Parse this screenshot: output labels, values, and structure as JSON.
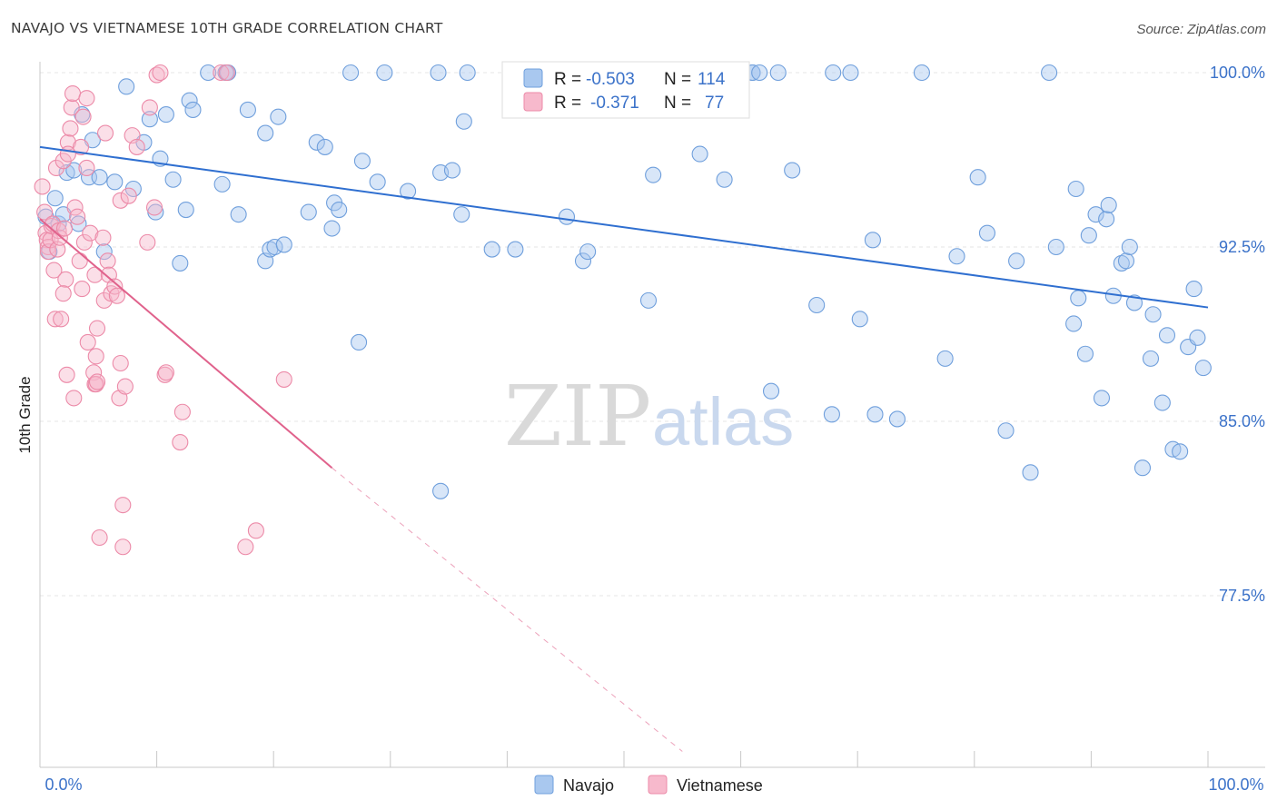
{
  "title": "NAVAJO VS VIETNAMESE 10TH GRADE CORRELATION CHART",
  "source": "Source: ZipAtlas.com",
  "watermark": {
    "zip": "ZIP",
    "atlas": "atlas"
  },
  "colors": {
    "navajo_fill": "#a9c8ef",
    "navajo_stroke": "#6f9fdc",
    "navajo_line": "#2f6fd0",
    "viet_fill": "#f7b9cc",
    "viet_stroke": "#ec8aa8",
    "viet_line": "#e0628c",
    "axis_label": "#3b72c9"
  },
  "legend_top": {
    "rows": [
      {
        "r_label": "R =",
        "r_value": "-0.503",
        "n_label": "N =",
        "n_value": "114"
      },
      {
        "r_label": "R =",
        "r_value": "-0.371",
        "n_label": "N =",
        "n_value": "77"
      }
    ]
  },
  "legend_bottom": {
    "items": [
      "Navajo",
      "Vietnamese"
    ]
  },
  "chart_data": {
    "type": "scatter",
    "xlabel": "",
    "ylabel": "10th Grade",
    "xlim": [
      0,
      100
    ],
    "ylim": [
      70.8,
      101.0
    ],
    "x_tick_labels": [
      "0.0%",
      "100.0%"
    ],
    "y_ticks": [
      100.0,
      92.5,
      85.0,
      77.5
    ],
    "y_tick_labels": [
      "100.0%",
      "92.5%",
      "85.0%",
      "77.5%"
    ],
    "grid": true,
    "legend_placement": "top-center",
    "series": [
      {
        "name": "Navajo",
        "r": -0.503,
        "n": 114,
        "trend": {
          "x": [
            0,
            100
          ],
          "y": [
            96.8,
            89.9
          ],
          "dashed_extension": false
        },
        "points": [
          [
            0.5,
            93.8
          ],
          [
            0.8,
            92.3
          ],
          [
            1.3,
            94.6
          ],
          [
            1.6,
            93.5
          ],
          [
            2.0,
            93.9
          ],
          [
            2.3,
            95.7
          ],
          [
            2.9,
            95.8
          ],
          [
            3.3,
            93.5
          ],
          [
            3.6,
            98.2
          ],
          [
            4.2,
            95.5
          ],
          [
            4.5,
            97.1
          ],
          [
            5.1,
            95.5
          ],
          [
            5.5,
            92.3
          ],
          [
            6.4,
            95.3
          ],
          [
            7.4,
            99.4
          ],
          [
            8.0,
            95.0
          ],
          [
            8.9,
            97.0
          ],
          [
            9.4,
            98.0
          ],
          [
            9.9,
            94.0
          ],
          [
            10.3,
            96.3
          ],
          [
            10.8,
            98.2
          ],
          [
            11.4,
            95.4
          ],
          [
            12.0,
            91.8
          ],
          [
            12.5,
            94.1
          ],
          [
            12.8,
            98.8
          ],
          [
            13.1,
            98.4
          ],
          [
            14.4,
            100.0
          ],
          [
            15.6,
            95.2
          ],
          [
            15.9,
            100.0
          ],
          [
            16.1,
            100.0
          ],
          [
            17.0,
            93.9
          ],
          [
            17.8,
            98.4
          ],
          [
            19.3,
            97.4
          ],
          [
            19.3,
            91.9
          ],
          [
            19.7,
            92.4
          ],
          [
            20.1,
            92.5
          ],
          [
            20.4,
            98.1
          ],
          [
            20.9,
            92.6
          ],
          [
            23.0,
            94.0
          ],
          [
            23.7,
            97.0
          ],
          [
            24.4,
            96.8
          ],
          [
            25.0,
            93.3
          ],
          [
            25.2,
            94.4
          ],
          [
            25.6,
            94.1
          ],
          [
            26.6,
            100.0
          ],
          [
            27.3,
            88.4
          ],
          [
            27.6,
            96.2
          ],
          [
            28.9,
            95.3
          ],
          [
            29.5,
            100.0
          ],
          [
            31.5,
            94.9
          ],
          [
            34.1,
            100.0
          ],
          [
            34.3,
            95.7
          ],
          [
            35.3,
            95.8
          ],
          [
            36.1,
            93.9
          ],
          [
            36.3,
            97.9
          ],
          [
            36.6,
            100.0
          ],
          [
            38.7,
            92.4
          ],
          [
            40.7,
            92.4
          ],
          [
            45.1,
            93.8
          ],
          [
            46.5,
            91.9
          ],
          [
            46.9,
            92.3
          ],
          [
            52.1,
            90.2
          ],
          [
            52.5,
            95.6
          ],
          [
            53.4,
            100.0
          ],
          [
            56.5,
            96.5
          ],
          [
            58.6,
            95.4
          ],
          [
            61.0,
            100.0
          ],
          [
            61.0,
            100.0
          ],
          [
            61.6,
            100.0
          ],
          [
            62.6,
            86.3
          ],
          [
            63.2,
            100.0
          ],
          [
            64.4,
            95.8
          ],
          [
            66.5,
            90.0
          ],
          [
            67.8,
            85.3
          ],
          [
            67.9,
            100.0
          ],
          [
            69.4,
            100.0
          ],
          [
            70.2,
            89.4
          ],
          [
            71.3,
            92.8
          ],
          [
            71.5,
            85.3
          ],
          [
            73.4,
            85.1
          ],
          [
            75.5,
            100.0
          ],
          [
            77.5,
            87.7
          ],
          [
            78.5,
            92.1
          ],
          [
            80.3,
            95.5
          ],
          [
            81.1,
            93.1
          ],
          [
            82.7,
            84.6
          ],
          [
            83.6,
            91.9
          ],
          [
            84.8,
            82.8
          ],
          [
            86.4,
            100.0
          ],
          [
            87.0,
            92.5
          ],
          [
            88.5,
            89.2
          ],
          [
            88.7,
            95.0
          ],
          [
            88.9,
            90.3
          ],
          [
            89.5,
            87.9
          ],
          [
            89.8,
            93.0
          ],
          [
            90.4,
            93.9
          ],
          [
            90.9,
            86.0
          ],
          [
            91.3,
            93.7
          ],
          [
            91.5,
            94.3
          ],
          [
            91.9,
            90.4
          ],
          [
            92.6,
            91.8
          ],
          [
            93.0,
            91.9
          ],
          [
            93.3,
            92.5
          ],
          [
            93.7,
            90.1
          ],
          [
            94.4,
            83.0
          ],
          [
            95.1,
            87.7
          ],
          [
            95.3,
            89.6
          ],
          [
            96.1,
            85.8
          ],
          [
            96.5,
            88.7
          ],
          [
            97.0,
            83.8
          ],
          [
            97.6,
            83.7
          ],
          [
            98.3,
            88.2
          ],
          [
            98.8,
            90.7
          ],
          [
            99.1,
            88.6
          ],
          [
            99.6,
            87.3
          ],
          [
            34.3,
            82.0
          ]
        ]
      },
      {
        "name": "Vietnamese",
        "r": -0.371,
        "n": 77,
        "trend": {
          "x": [
            0,
            25
          ],
          "y": [
            93.7,
            83.0
          ],
          "dashed_extension": {
            "x": [
              25,
              55
            ],
            "y": [
              83.0,
              70.8
            ]
          }
        },
        "points": [
          [
            0.2,
            95.1
          ],
          [
            0.4,
            94.0
          ],
          [
            0.5,
            93.1
          ],
          [
            0.6,
            92.8
          ],
          [
            0.7,
            92.5
          ],
          [
            0.7,
            92.3
          ],
          [
            0.9,
            92.8
          ],
          [
            1.0,
            93.4
          ],
          [
            1.1,
            93.5
          ],
          [
            1.2,
            91.5
          ],
          [
            1.3,
            89.4
          ],
          [
            1.4,
            95.9
          ],
          [
            1.5,
            92.4
          ],
          [
            1.6,
            93.2
          ],
          [
            1.7,
            92.9
          ],
          [
            1.8,
            89.4
          ],
          [
            2.0,
            96.2
          ],
          [
            2.1,
            93.3
          ],
          [
            2.2,
            91.1
          ],
          [
            2.3,
            87.0
          ],
          [
            2.4,
            97.0
          ],
          [
            2.4,
            96.5
          ],
          [
            2.6,
            97.6
          ],
          [
            2.7,
            98.5
          ],
          [
            2.8,
            99.1
          ],
          [
            2.9,
            86.0
          ],
          [
            3.0,
            94.2
          ],
          [
            3.2,
            93.8
          ],
          [
            3.4,
            91.9
          ],
          [
            3.5,
            96.8
          ],
          [
            3.6,
            90.7
          ],
          [
            3.7,
            98.1
          ],
          [
            3.8,
            92.7
          ],
          [
            4.0,
            98.9
          ],
          [
            4.0,
            95.9
          ],
          [
            4.1,
            88.4
          ],
          [
            4.3,
            93.1
          ],
          [
            4.6,
            87.1
          ],
          [
            4.7,
            91.3
          ],
          [
            4.7,
            86.6
          ],
          [
            4.8,
            87.8
          ],
          [
            4.8,
            86.6
          ],
          [
            4.9,
            89.0
          ],
          [
            5.1,
            80.0
          ],
          [
            5.4,
            92.9
          ],
          [
            5.5,
            90.2
          ],
          [
            5.6,
            97.4
          ],
          [
            5.8,
            91.9
          ],
          [
            5.9,
            91.3
          ],
          [
            6.1,
            90.5
          ],
          [
            6.4,
            90.8
          ],
          [
            6.6,
            90.4
          ],
          [
            6.8,
            86.0
          ],
          [
            6.9,
            87.5
          ],
          [
            6.9,
            94.5
          ],
          [
            7.1,
            81.4
          ],
          [
            7.1,
            79.6
          ],
          [
            7.3,
            86.5
          ],
          [
            7.6,
            94.7
          ],
          [
            7.9,
            97.3
          ],
          [
            8.3,
            96.8
          ],
          [
            9.2,
            92.7
          ],
          [
            9.4,
            98.5
          ],
          [
            9.8,
            94.2
          ],
          [
            10.0,
            99.9
          ],
          [
            10.3,
            100.0
          ],
          [
            10.7,
            87.0
          ],
          [
            10.8,
            87.1
          ],
          [
            12.0,
            84.1
          ],
          [
            12.2,
            85.4
          ],
          [
            15.5,
            100.0
          ],
          [
            16.0,
            100.0
          ],
          [
            17.6,
            79.6
          ],
          [
            18.5,
            80.3
          ],
          [
            20.9,
            86.8
          ],
          [
            2.0,
            90.5
          ],
          [
            4.9,
            86.7
          ]
        ]
      }
    ]
  }
}
